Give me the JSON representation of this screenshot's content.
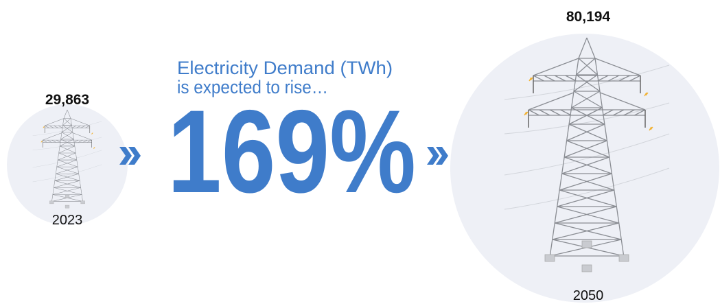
{
  "left": {
    "value": "29,863",
    "year": "2023"
  },
  "right": {
    "value": "80,194",
    "year": "2050"
  },
  "headline": {
    "line1": "Electricity Demand (TWh)",
    "line2": "is expected to rise…",
    "percent": "169%"
  }
}
